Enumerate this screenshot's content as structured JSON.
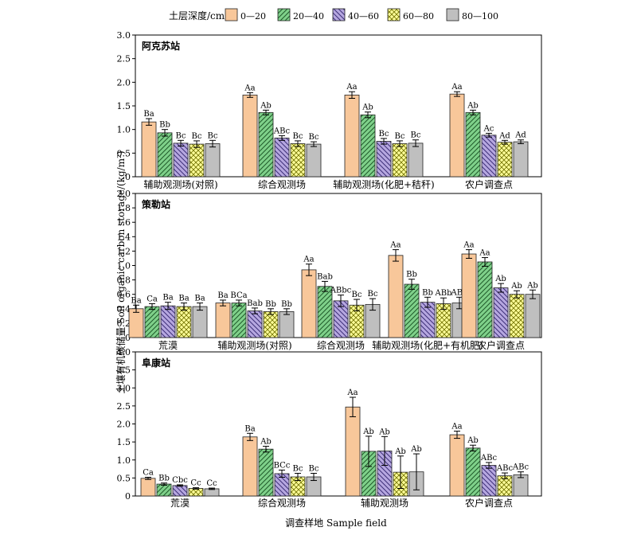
{
  "legend": {
    "title": "土层深度/cm",
    "items": [
      {
        "label": "0—20",
        "color": "#F8C79A",
        "pattern": "solid"
      },
      {
        "label": "20—40",
        "color": "#7FD18A",
        "pattern": "diag-right"
      },
      {
        "label": "40—60",
        "color": "#B6A7E0",
        "pattern": "diag-left"
      },
      {
        "label": "60—80",
        "color": "#FFFF99",
        "pattern": "cross"
      },
      {
        "label": "80—100",
        "color": "#BFBFBF",
        "pattern": "solid"
      }
    ]
  },
  "y_axis_label": "土壤有机碳储量 Soil organic carbon storage/(kg/m²)",
  "x_axis_label": "调查样地 Sample field",
  "chart_data": [
    {
      "type": "bar",
      "title": "阿克苏站",
      "ylim": [
        0,
        3.0
      ],
      "yticks": [
        "0",
        "0.5",
        "1.0",
        "1.5",
        "2.0",
        "2.5",
        "3.0"
      ],
      "categories": [
        "辅助观测场(对照)",
        "综合观测场",
        "辅助观测场(化肥+秸秆)",
        "农户调查点"
      ],
      "series": [
        {
          "name": "0—20",
          "values": [
            1.16,
            1.73,
            1.73,
            1.75
          ],
          "errors": [
            0.07,
            0.05,
            0.07,
            0.05
          ],
          "labels": [
            "Ba",
            "Aa",
            "Aa",
            "Aa"
          ]
        },
        {
          "name": "20—40",
          "values": [
            0.93,
            1.36,
            1.31,
            1.36
          ],
          "errors": [
            0.07,
            0.05,
            0.06,
            0.05
          ],
          "labels": [
            "Bb",
            "Ab",
            "Ab",
            "Ab"
          ]
        },
        {
          "name": "40—60",
          "values": [
            0.71,
            0.82,
            0.75,
            0.88
          ],
          "errors": [
            0.06,
            0.05,
            0.06,
            0.04
          ],
          "labels": [
            "Bc",
            "ABc",
            "Bc",
            "Ac"
          ]
        },
        {
          "name": "60—80",
          "values": [
            0.69,
            0.7,
            0.7,
            0.73
          ],
          "errors": [
            0.07,
            0.06,
            0.06,
            0.04
          ],
          "labels": [
            "Bc",
            "Bc",
            "Bc",
            "Ad"
          ]
        },
        {
          "name": "80—100",
          "values": [
            0.7,
            0.69,
            0.71,
            0.74
          ],
          "errors": [
            0.07,
            0.05,
            0.07,
            0.04
          ],
          "labels": [
            "Bc",
            "Bc",
            "Bc",
            "Ad"
          ]
        }
      ]
    },
    {
      "type": "bar",
      "title": "策勒站",
      "ylim": [
        0,
        2.0
      ],
      "yticks": [
        "0",
        "0.2",
        "0.4",
        "0.6",
        "0.8",
        "1.0",
        "1.2",
        "1.4",
        "1.6",
        "1.8",
        "2.0"
      ],
      "categories": [
        "荒漠",
        "辅助观测场(对照)",
        "综合观测场",
        "辅助观测场(化肥+有机肥)",
        "农户调查点"
      ],
      "series": [
        {
          "name": "0—20",
          "values": [
            0.4,
            0.48,
            0.94,
            1.14,
            1.16
          ],
          "errors": [
            0.05,
            0.04,
            0.08,
            0.08,
            0.06
          ],
          "labels": [
            "Ba",
            "Ba",
            "Aa",
            "Aa",
            "Aa"
          ]
        },
        {
          "name": "20—40",
          "values": [
            0.43,
            0.48,
            0.71,
            0.74,
            1.05
          ],
          "errors": [
            0.04,
            0.04,
            0.07,
            0.07,
            0.06
          ],
          "labels": [
            "Ca",
            "BCa",
            "Bab",
            "Bb",
            "Aa"
          ]
        },
        {
          "name": "40—60",
          "values": [
            0.44,
            0.37,
            0.51,
            0.49,
            0.69
          ],
          "errors": [
            0.05,
            0.04,
            0.08,
            0.07,
            0.06
          ],
          "labels": [
            "Ba",
            "Bab",
            "ABbc",
            "Bb",
            "Ab"
          ]
        },
        {
          "name": "60—80",
          "values": [
            0.43,
            0.36,
            0.45,
            0.47,
            0.6
          ],
          "errors": [
            0.05,
            0.04,
            0.08,
            0.08,
            0.05
          ],
          "labels": [
            "Ba",
            "Bb",
            "Bc",
            "ABb",
            "Ab"
          ]
        },
        {
          "name": "80—100",
          "values": [
            0.43,
            0.36,
            0.46,
            0.48,
            0.6
          ],
          "errors": [
            0.05,
            0.04,
            0.08,
            0.08,
            0.06
          ],
          "labels": [
            "Ba",
            "Bb",
            "Bc",
            "ABb",
            "Ab"
          ]
        }
      ]
    },
    {
      "type": "bar",
      "title": "阜康站",
      "ylim": [
        0,
        4.0
      ],
      "yticks": [
        "0",
        "0.5",
        "1.0",
        "1.5",
        "2.0",
        "2.5",
        "3.0",
        "3.5",
        "4.0"
      ],
      "categories": [
        "荒漠",
        "综合观测场",
        "辅助观测场",
        "农户调查点"
      ],
      "series": [
        {
          "name": "0—20",
          "values": [
            0.49,
            1.64,
            2.47,
            1.7
          ],
          "errors": [
            0.03,
            0.1,
            0.27,
            0.1
          ],
          "labels": [
            "Ca",
            "Ba",
            "Aa",
            "Aa"
          ]
        },
        {
          "name": "20—40",
          "values": [
            0.33,
            1.3,
            1.24,
            1.33
          ],
          "errors": [
            0.03,
            0.08,
            0.42,
            0.08
          ],
          "labels": [
            "Bb",
            "Ab",
            "Ab",
            "Ab"
          ]
        },
        {
          "name": "40—60",
          "values": [
            0.29,
            0.62,
            1.25,
            0.85
          ],
          "errors": [
            0.02,
            0.1,
            0.4,
            0.08
          ],
          "labels": [
            "Cbc",
            "BCc",
            "Ab",
            "ABc"
          ]
        },
        {
          "name": "60—80",
          "values": [
            0.21,
            0.53,
            0.66,
            0.56
          ],
          "errors": [
            0.02,
            0.1,
            0.45,
            0.08
          ],
          "labels": [
            "Cc",
            "Bc",
            "Ab",
            "ABc"
          ]
        },
        {
          "name": "80—100",
          "values": [
            0.2,
            0.53,
            0.67,
            0.59
          ],
          "errors": [
            0.02,
            0.1,
            0.5,
            0.08
          ],
          "labels": [
            "Cc",
            "Bc",
            "Ab",
            "ABc"
          ]
        }
      ]
    }
  ]
}
